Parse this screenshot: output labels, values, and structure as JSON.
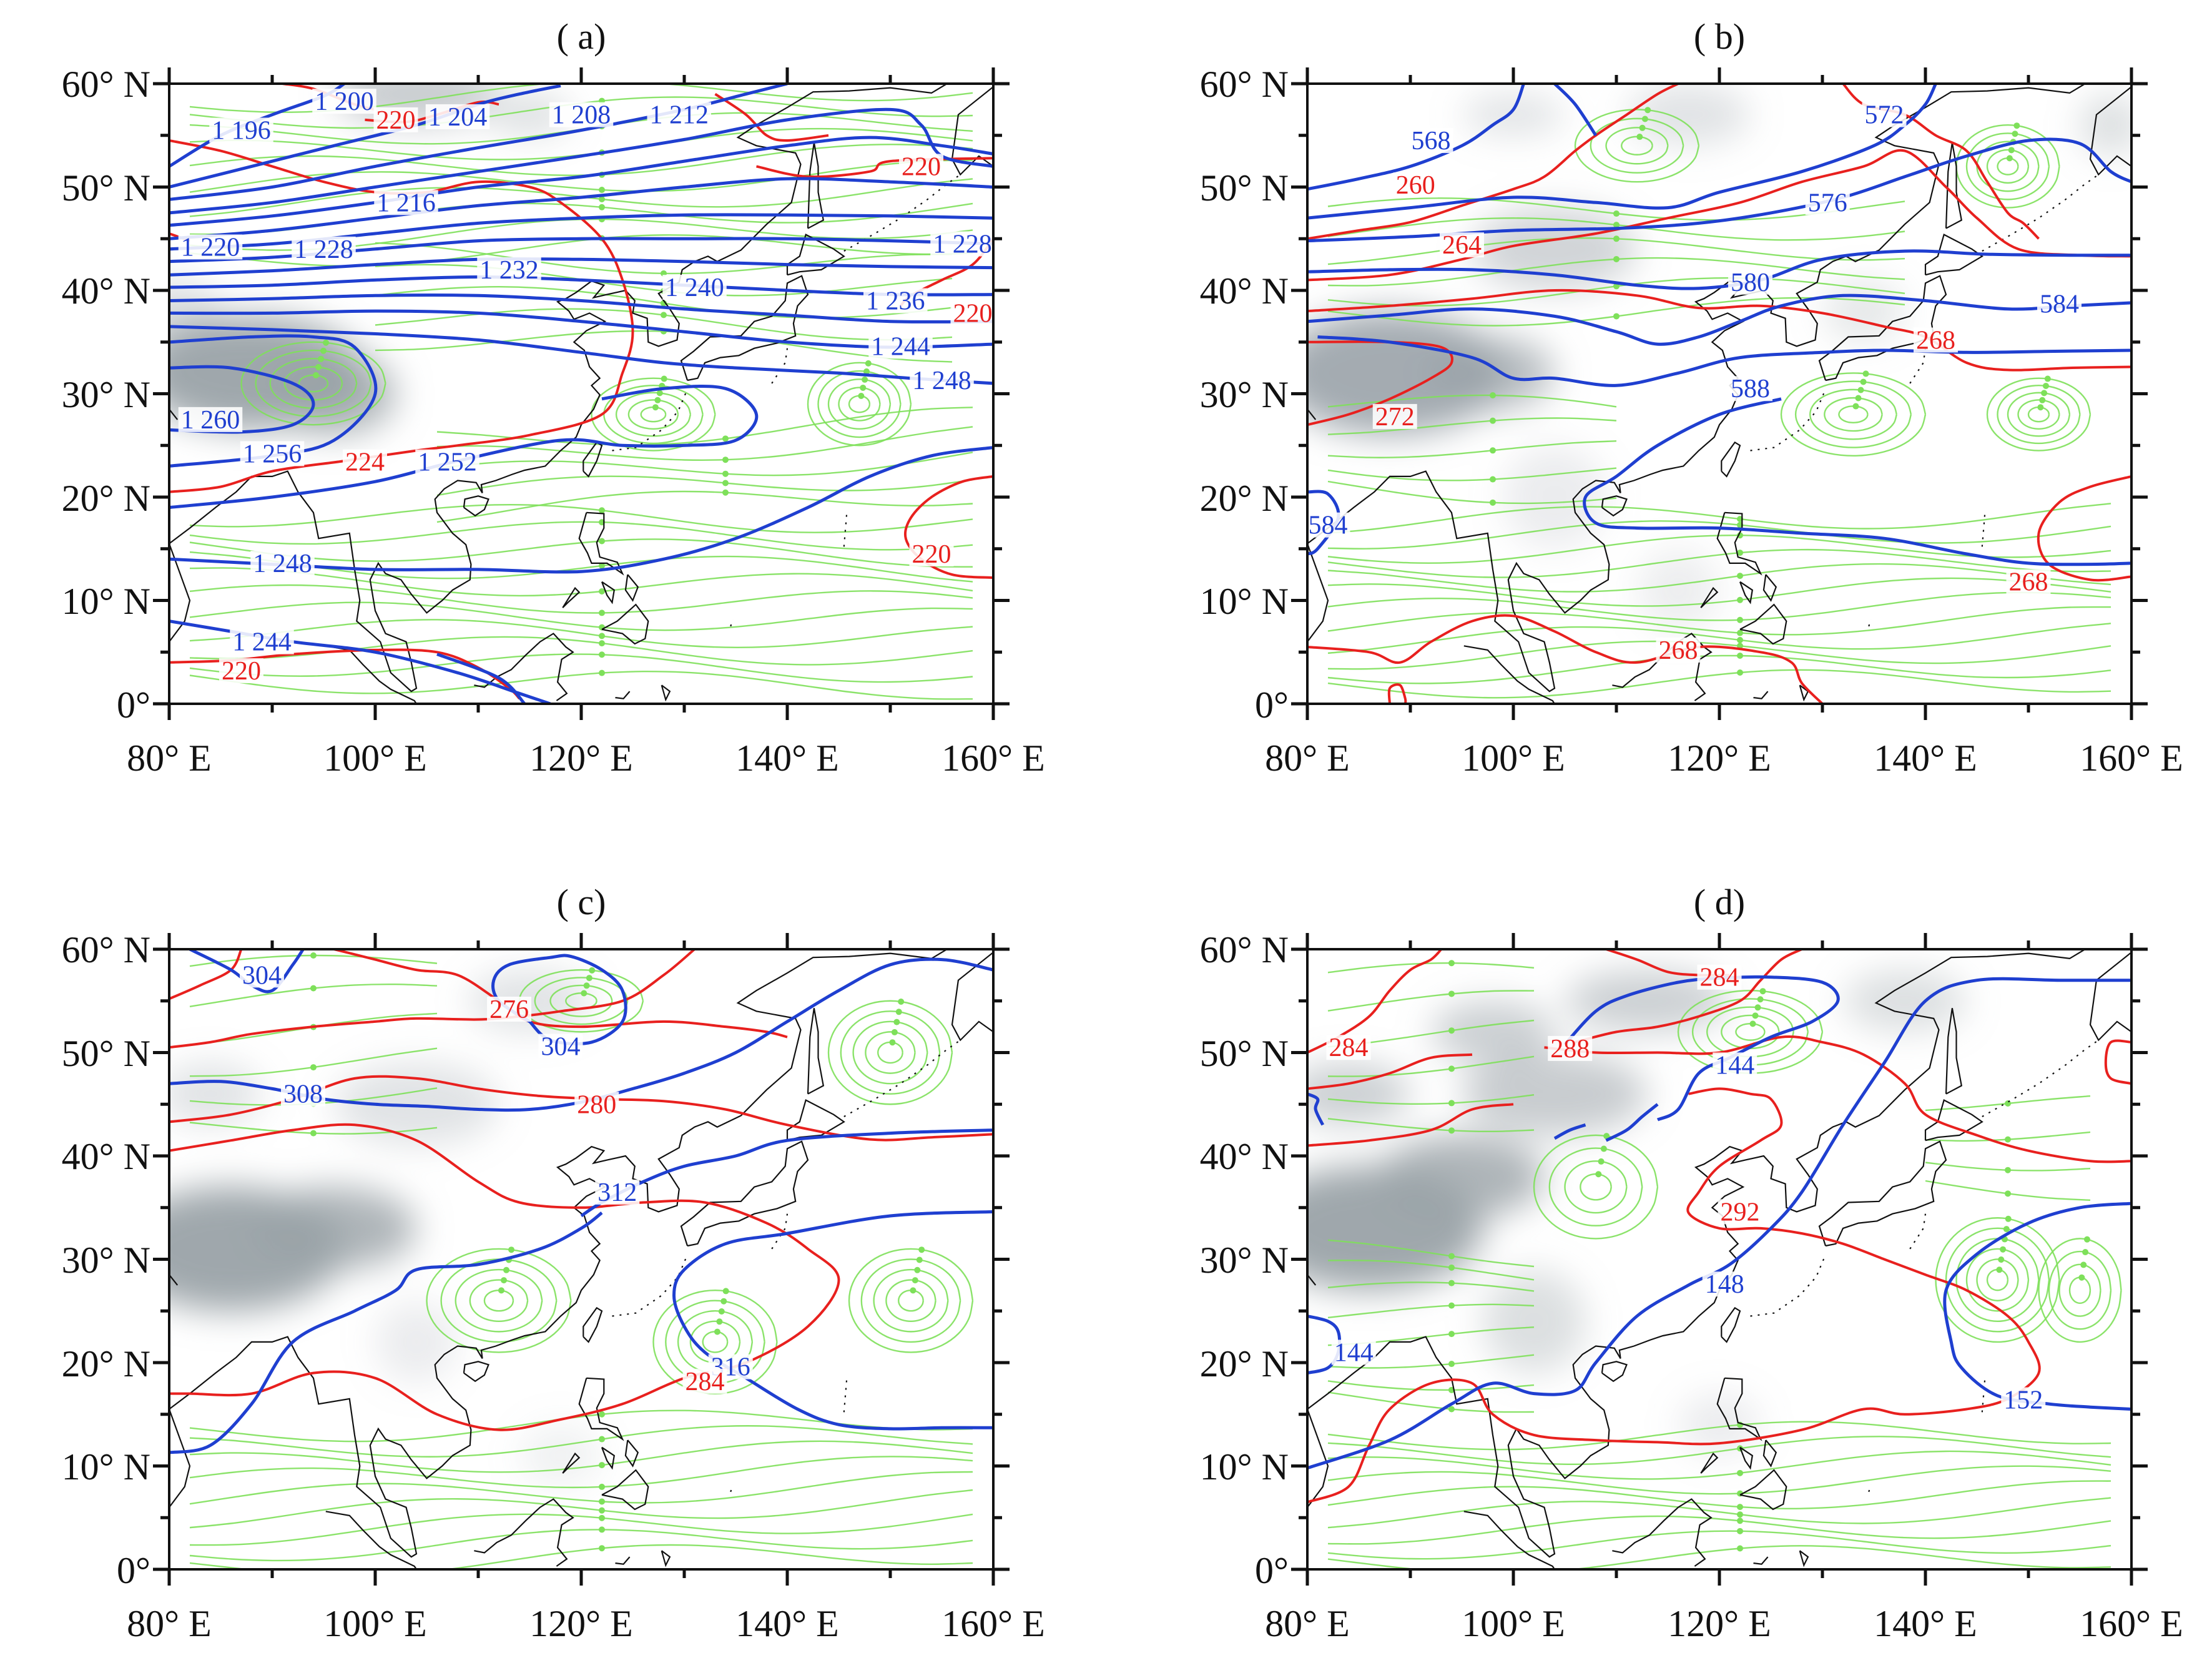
{
  "colors": {
    "height_contour": "#1f3fd0",
    "temperature_contour": "#e8201e",
    "streamline": "#7ee05a",
    "terrain_shading": "#9aa2a8",
    "coastline": "#111111"
  },
  "panels": [
    {
      "id": "a",
      "title": "( a)",
      "x_ticks": [
        "80° E",
        "100° E",
        "120° E",
        "140° E",
        "160° E"
      ],
      "y_ticks": [
        "60° N",
        "50° N",
        "40° N",
        "30° N",
        "20° N",
        "10° N",
        "0°"
      ],
      "blue_contour_labels": [
        {
          "text": "1 196",
          "lon": 87,
          "lat": 55.5
        },
        {
          "text": "1 200",
          "lon": 97,
          "lat": 58.3
        },
        {
          "text": "1 204",
          "lon": 108,
          "lat": 56.8
        },
        {
          "text": "1 208",
          "lon": 120,
          "lat": 57
        },
        {
          "text": "1 212",
          "lon": 129.5,
          "lat": 57
        },
        {
          "text": "1 216",
          "lon": 103,
          "lat": 48.5
        },
        {
          "text": "1 220",
          "lon": 84,
          "lat": 44.2
        },
        {
          "text": "1 228",
          "lon": 95,
          "lat": 44
        },
        {
          "text": "1 228",
          "lon": 157,
          "lat": 44.5
        },
        {
          "text": "1 232",
          "lon": 113,
          "lat": 42
        },
        {
          "text": "1 240",
          "lon": 131,
          "lat": 40.3
        },
        {
          "text": "1 236",
          "lon": 150.5,
          "lat": 39
        },
        {
          "text": "1 244",
          "lon": 151,
          "lat": 34.6
        },
        {
          "text": "1 248",
          "lon": 155,
          "lat": 31.3
        },
        {
          "text": "1 260",
          "lon": 84,
          "lat": 27.5
        },
        {
          "text": "1 256",
          "lon": 90,
          "lat": 24.2
        },
        {
          "text": "1 252",
          "lon": 107,
          "lat": 23.4
        },
        {
          "text": "1 248",
          "lon": 91,
          "lat": 13.6
        },
        {
          "text": "1 244",
          "lon": 89,
          "lat": 6
        }
      ],
      "red_contour_labels": [
        {
          "text": "220",
          "lon": 102,
          "lat": 56.5
        },
        {
          "text": "220",
          "lon": 153,
          "lat": 52
        },
        {
          "text": "220",
          "lon": 158,
          "lat": 37.8
        },
        {
          "text": "224",
          "lon": 99,
          "lat": 23.4
        },
        {
          "text": "220",
          "lon": 154,
          "lat": 14.5
        },
        {
          "text": "220",
          "lon": 87,
          "lat": 3.2
        }
      ]
    },
    {
      "id": "b",
      "title": "( b)",
      "x_ticks": [
        "80° E",
        "100° E",
        "120° E",
        "140° E",
        "160° E"
      ],
      "y_ticks": [
        "60° N",
        "50° N",
        "40° N",
        "30° N",
        "20° N",
        "10° N",
        "0°"
      ],
      "blue_contour_labels": [
        {
          "text": "568",
          "lon": 92,
          "lat": 54.5
        },
        {
          "text": "572",
          "lon": 136,
          "lat": 57
        },
        {
          "text": "576",
          "lon": 130.5,
          "lat": 48.5
        },
        {
          "text": "580",
          "lon": 123,
          "lat": 40.8
        },
        {
          "text": "584",
          "lon": 153,
          "lat": 38.7
        },
        {
          "text": "588",
          "lon": 123,
          "lat": 30.5
        },
        {
          "text": "584",
          "lon": 82,
          "lat": 17.3
        }
      ],
      "red_contour_labels": [
        {
          "text": "260",
          "lon": 90.5,
          "lat": 50.2
        },
        {
          "text": "264",
          "lon": 95,
          "lat": 44.4
        },
        {
          "text": "268",
          "lon": 141,
          "lat": 35.2
        },
        {
          "text": "272",
          "lon": 88.5,
          "lat": 27.8
        },
        {
          "text": "268",
          "lon": 150,
          "lat": 11.8
        },
        {
          "text": "268",
          "lon": 116,
          "lat": 5.2
        }
      ]
    },
    {
      "id": "c",
      "title": "( c)",
      "x_ticks": [
        "80° E",
        "100° E",
        "120° E",
        "140° E",
        "160° E"
      ],
      "y_ticks": [
        "60° N",
        "50° N",
        "40° N",
        "30° N",
        "20° N",
        "10° N",
        "0°"
      ],
      "blue_contour_labels": [
        {
          "text": "304",
          "lon": 89,
          "lat": 57.5
        },
        {
          "text": "304",
          "lon": 118,
          "lat": 50.6
        },
        {
          "text": "308",
          "lon": 93,
          "lat": 46
        },
        {
          "text": "312",
          "lon": 123.5,
          "lat": 36.5
        },
        {
          "text": "316",
          "lon": 134.5,
          "lat": 19.6
        }
      ],
      "red_contour_labels": [
        {
          "text": "276",
          "lon": 113,
          "lat": 54.2
        },
        {
          "text": "280",
          "lon": 121.5,
          "lat": 45
        },
        {
          "text": "284",
          "lon": 132,
          "lat": 18.2
        }
      ]
    },
    {
      "id": "d",
      "title": "( d)",
      "x_ticks": [
        "80° E",
        "100° E",
        "120° E",
        "140° E",
        "160° E"
      ],
      "y_ticks": [
        "60° N",
        "50° N",
        "40° N",
        "30° N",
        "20° N",
        "10° N",
        "0°"
      ],
      "blue_contour_labels": [
        {
          "text": "144",
          "lon": 121.5,
          "lat": 48.8
        },
        {
          "text": "148",
          "lon": 120.5,
          "lat": 27.6
        },
        {
          "text": "144",
          "lon": 84.5,
          "lat": 21
        },
        {
          "text": "152",
          "lon": 149.5,
          "lat": 16.4
        }
      ],
      "red_contour_labels": [
        {
          "text": "284",
          "lon": 120,
          "lat": 57.3
        },
        {
          "text": "284",
          "lon": 84,
          "lat": 50.5
        },
        {
          "text": "288",
          "lon": 105.5,
          "lat": 50.4
        },
        {
          "text": "292",
          "lon": 122,
          "lat": 34.6
        }
      ]
    }
  ]
}
